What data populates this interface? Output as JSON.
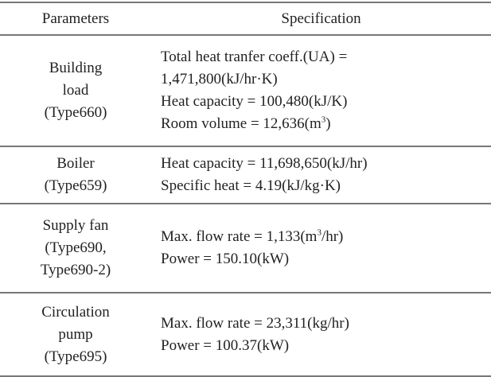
{
  "table": {
    "header": [
      "Parameters",
      "Specification"
    ],
    "rows": [
      {
        "parameter": [
          "Building",
          "load",
          "(Type660)"
        ],
        "specification": [
          "Total heat tranfer coeff.(UA) =",
          "1,471,800(kJ/hr·K)",
          "Heat capacity = 100,480(kJ/K)",
          {
            "text": "Room volume = 12,636(m",
            "sup": "3",
            "tail": ")"
          }
        ]
      },
      {
        "parameter": [
          "Boiler",
          "(Type659)"
        ],
        "specification": [
          "Heat capacity = 11,698,650(kJ/hr)",
          "Specific heat = 4.19(kJ/kg·K)"
        ]
      },
      {
        "parameter": [
          "Supply fan",
          "(Type690,",
          "Type690-2)"
        ],
        "specification": [
          {
            "text": "Max. flow rate = 1,133(m",
            "sup": "3",
            "tail": "/hr)"
          },
          "Power = 150.10(kW)"
        ]
      },
      {
        "parameter": [
          "Circulation",
          "pump",
          "(Type695)"
        ],
        "specification": [
          "Max. flow rate = 23,311(kg/hr)",
          "Power = 100.37(kW)"
        ]
      }
    ]
  }
}
